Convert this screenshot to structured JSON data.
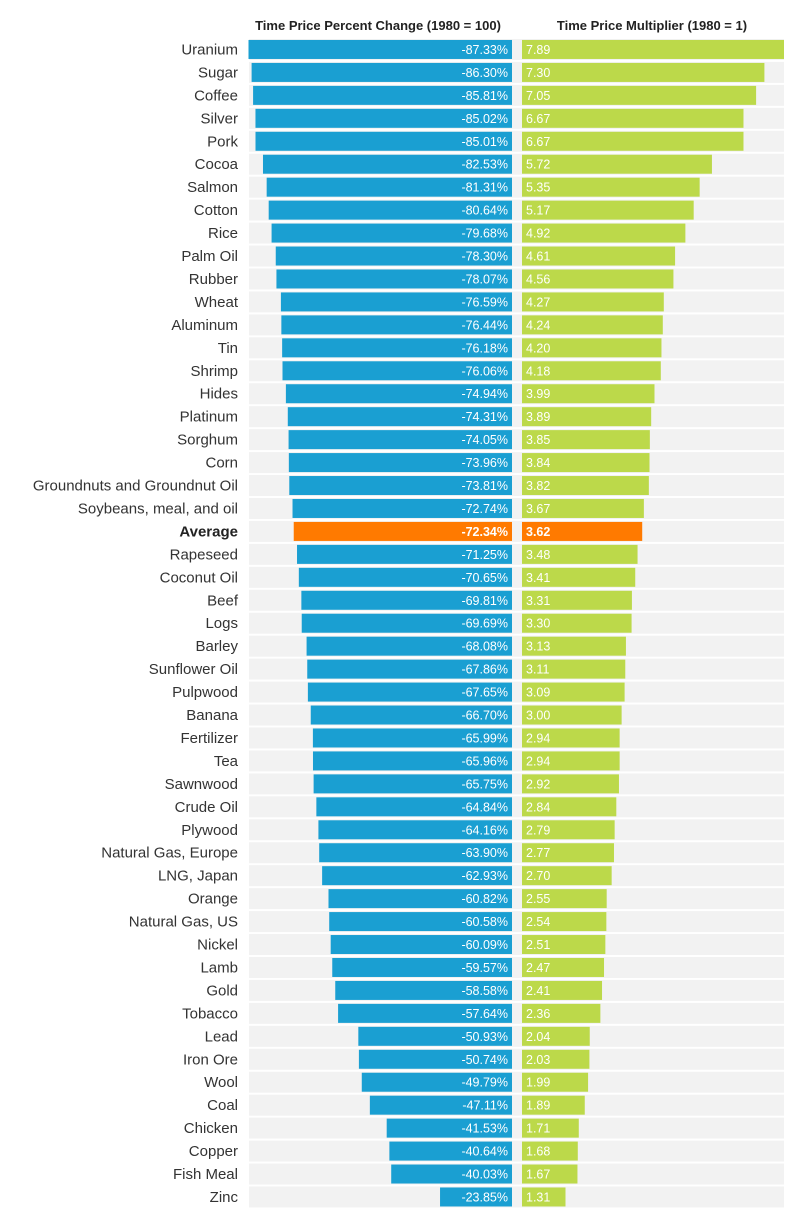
{
  "chart_data": {
    "type": "bar",
    "panels": [
      {
        "title": "Time Price Percent Change (1980 = 100)",
        "series": "pct_change"
      },
      {
        "title": "Time Price Multiplier (1980 = 1)",
        "series": "multiplier"
      }
    ],
    "colors": {
      "pct": "#1a9fd2",
      "mult": "#bcd94a",
      "average": "#ff7a00",
      "stripe": "#f2f2f2"
    },
    "rows": [
      {
        "label": "Uranium",
        "pct": -87.33,
        "pct_text": "-87.33%",
        "mult": 7.89,
        "mult_text": "7.89"
      },
      {
        "label": "Sugar",
        "pct": -86.3,
        "pct_text": "-86.30%",
        "mult": 7.3,
        "mult_text": "7.30"
      },
      {
        "label": "Coffee",
        "pct": -85.81,
        "pct_text": "-85.81%",
        "mult": 7.05,
        "mult_text": "7.05"
      },
      {
        "label": "Silver",
        "pct": -85.02,
        "pct_text": "-85.02%",
        "mult": 6.67,
        "mult_text": "6.67"
      },
      {
        "label": "Pork",
        "pct": -85.01,
        "pct_text": "-85.01%",
        "mult": 6.67,
        "mult_text": "6.67"
      },
      {
        "label": "Cocoa",
        "pct": -82.53,
        "pct_text": "-82.53%",
        "mult": 5.72,
        "mult_text": "5.72"
      },
      {
        "label": "Salmon",
        "pct": -81.31,
        "pct_text": "-81.31%",
        "mult": 5.35,
        "mult_text": "5.35"
      },
      {
        "label": "Cotton",
        "pct": -80.64,
        "pct_text": "-80.64%",
        "mult": 5.17,
        "mult_text": "5.17"
      },
      {
        "label": "Rice",
        "pct": -79.68,
        "pct_text": "-79.68%",
        "mult": 4.92,
        "mult_text": "4.92"
      },
      {
        "label": "Palm Oil",
        "pct": -78.3,
        "pct_text": "-78.30%",
        "mult": 4.61,
        "mult_text": "4.61"
      },
      {
        "label": "Rubber",
        "pct": -78.07,
        "pct_text": "-78.07%",
        "mult": 4.56,
        "mult_text": "4.56"
      },
      {
        "label": "Wheat",
        "pct": -76.59,
        "pct_text": "-76.59%",
        "mult": 4.27,
        "mult_text": "4.27"
      },
      {
        "label": "Aluminum",
        "pct": -76.44,
        "pct_text": "-76.44%",
        "mult": 4.24,
        "mult_text": "4.24"
      },
      {
        "label": "Tin",
        "pct": -76.18,
        "pct_text": "-76.18%",
        "mult": 4.2,
        "mult_text": "4.20"
      },
      {
        "label": "Shrimp",
        "pct": -76.06,
        "pct_text": "-76.06%",
        "mult": 4.18,
        "mult_text": "4.18"
      },
      {
        "label": "Hides",
        "pct": -74.94,
        "pct_text": "-74.94%",
        "mult": 3.99,
        "mult_text": "3.99"
      },
      {
        "label": "Platinum",
        "pct": -74.31,
        "pct_text": "-74.31%",
        "mult": 3.89,
        "mult_text": "3.89"
      },
      {
        "label": "Sorghum",
        "pct": -74.05,
        "pct_text": "-74.05%",
        "mult": 3.85,
        "mult_text": "3.85"
      },
      {
        "label": "Corn",
        "pct": -73.96,
        "pct_text": "-73.96%",
        "mult": 3.84,
        "mult_text": "3.84"
      },
      {
        "label": "Groundnuts and Groundnut Oil",
        "pct": -73.81,
        "pct_text": "-73.81%",
        "mult": 3.82,
        "mult_text": "3.82"
      },
      {
        "label": "Soybeans, meal, and oil",
        "pct": -72.74,
        "pct_text": "-72.74%",
        "mult": 3.67,
        "mult_text": "3.67"
      },
      {
        "label": "Average",
        "pct": -72.34,
        "pct_text": "-72.34%",
        "mult": 3.62,
        "mult_text": "3.62",
        "highlight": true
      },
      {
        "label": "Rapeseed",
        "pct": -71.25,
        "pct_text": "-71.25%",
        "mult": 3.48,
        "mult_text": "3.48"
      },
      {
        "label": "Coconut Oil",
        "pct": -70.65,
        "pct_text": "-70.65%",
        "mult": 3.41,
        "mult_text": "3.41"
      },
      {
        "label": "Beef",
        "pct": -69.81,
        "pct_text": "-69.81%",
        "mult": 3.31,
        "mult_text": "3.31"
      },
      {
        "label": "Logs",
        "pct": -69.69,
        "pct_text": "-69.69%",
        "mult": 3.3,
        "mult_text": "3.30"
      },
      {
        "label": "Barley",
        "pct": -68.08,
        "pct_text": "-68.08%",
        "mult": 3.13,
        "mult_text": "3.13"
      },
      {
        "label": "Sunflower Oil",
        "pct": -67.86,
        "pct_text": "-67.86%",
        "mult": 3.11,
        "mult_text": "3.11"
      },
      {
        "label": "Pulpwood",
        "pct": -67.65,
        "pct_text": "-67.65%",
        "mult": 3.09,
        "mult_text": "3.09"
      },
      {
        "label": "Banana",
        "pct": -66.7,
        "pct_text": "-66.70%",
        "mult": 3.0,
        "mult_text": "3.00"
      },
      {
        "label": "Fertilizer",
        "pct": -65.99,
        "pct_text": "-65.99%",
        "mult": 2.94,
        "mult_text": "2.94"
      },
      {
        "label": "Tea",
        "pct": -65.96,
        "pct_text": "-65.96%",
        "mult": 2.94,
        "mult_text": "2.94"
      },
      {
        "label": "Sawnwood",
        "pct": -65.75,
        "pct_text": "-65.75%",
        "mult": 2.92,
        "mult_text": "2.92"
      },
      {
        "label": "Crude Oil",
        "pct": -64.84,
        "pct_text": "-64.84%",
        "mult": 2.84,
        "mult_text": "2.84"
      },
      {
        "label": "Plywood",
        "pct": -64.16,
        "pct_text": "-64.16%",
        "mult": 2.79,
        "mult_text": "2.79"
      },
      {
        "label": "Natural Gas, Europe",
        "pct": -63.9,
        "pct_text": "-63.90%",
        "mult": 2.77,
        "mult_text": "2.77"
      },
      {
        "label": "LNG, Japan",
        "pct": -62.93,
        "pct_text": "-62.93%",
        "mult": 2.7,
        "mult_text": "2.70"
      },
      {
        "label": "Orange",
        "pct": -60.82,
        "pct_text": "-60.82%",
        "mult": 2.55,
        "mult_text": "2.55"
      },
      {
        "label": "Natural Gas, US",
        "pct": -60.58,
        "pct_text": "-60.58%",
        "mult": 2.54,
        "mult_text": "2.54"
      },
      {
        "label": "Nickel",
        "pct": -60.09,
        "pct_text": "-60.09%",
        "mult": 2.51,
        "mult_text": "2.51"
      },
      {
        "label": "Lamb",
        "pct": -59.57,
        "pct_text": "-59.57%",
        "mult": 2.47,
        "mult_text": "2.47"
      },
      {
        "label": "Gold",
        "pct": -58.58,
        "pct_text": "-58.58%",
        "mult": 2.41,
        "mult_text": "2.41"
      },
      {
        "label": "Tobacco",
        "pct": -57.64,
        "pct_text": "-57.64%",
        "mult": 2.36,
        "mult_text": "2.36"
      },
      {
        "label": "Lead",
        "pct": -50.93,
        "pct_text": "-50.93%",
        "mult": 2.04,
        "mult_text": "2.04"
      },
      {
        "label": "Iron Ore",
        "pct": -50.74,
        "pct_text": "-50.74%",
        "mult": 2.03,
        "mult_text": "2.03"
      },
      {
        "label": "Wool",
        "pct": -49.79,
        "pct_text": "-49.79%",
        "mult": 1.99,
        "mult_text": "1.99"
      },
      {
        "label": "Coal",
        "pct": -47.11,
        "pct_text": "-47.11%",
        "mult": 1.89,
        "mult_text": "1.89"
      },
      {
        "label": "Chicken",
        "pct": -41.53,
        "pct_text": "-41.53%",
        "mult": 1.71,
        "mult_text": "1.71"
      },
      {
        "label": "Copper",
        "pct": -40.64,
        "pct_text": "-40.64%",
        "mult": 1.68,
        "mult_text": "1.68"
      },
      {
        "label": "Fish Meal",
        "pct": -40.03,
        "pct_text": "-40.03%",
        "mult": 1.67,
        "mult_text": "1.67"
      },
      {
        "label": "Zinc",
        "pct": -23.85,
        "pct_text": "-23.85%",
        "mult": 1.31,
        "mult_text": "1.31"
      }
    ]
  }
}
